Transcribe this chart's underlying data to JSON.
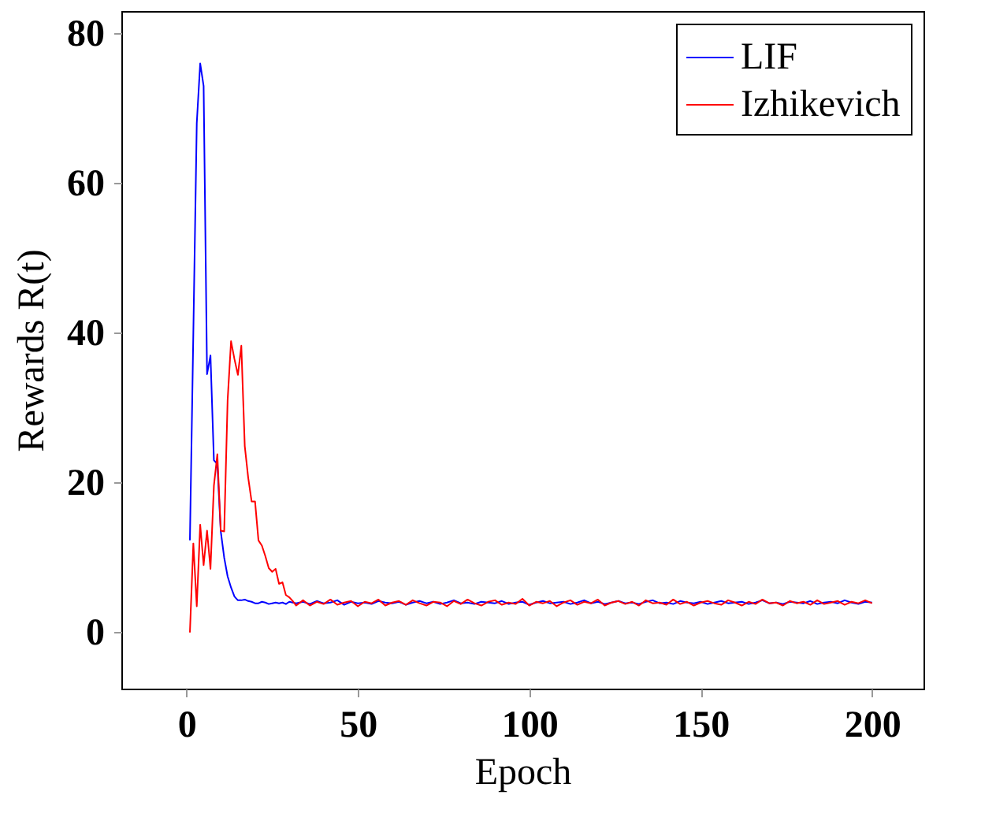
{
  "chart_data": {
    "type": "line",
    "xlabel": "Epoch",
    "ylabel": "Rewards R(t)",
    "x": [
      1,
      2,
      3,
      4,
      5,
      6,
      7,
      8,
      9,
      10,
      11,
      12,
      13,
      14,
      15,
      16,
      17,
      18,
      19,
      20,
      21,
      22,
      23,
      24,
      25,
      26,
      27,
      28,
      29,
      30,
      31,
      32,
      34,
      36,
      38,
      40,
      42,
      44,
      46,
      48,
      50,
      52,
      54,
      56,
      58,
      60,
      62,
      64,
      66,
      68,
      70,
      72,
      74,
      76,
      78,
      80,
      82,
      84,
      86,
      88,
      90,
      92,
      94,
      96,
      98,
      100,
      102,
      104,
      106,
      108,
      110,
      112,
      114,
      116,
      118,
      120,
      122,
      124,
      126,
      128,
      130,
      132,
      134,
      136,
      138,
      140,
      142,
      144,
      146,
      148,
      150,
      152,
      154,
      156,
      158,
      160,
      162,
      164,
      166,
      168,
      170,
      172,
      174,
      176,
      178,
      180,
      182,
      184,
      186,
      188,
      190,
      192,
      194,
      196,
      198,
      200
    ],
    "series": [
      {
        "name": "LIF",
        "color": "#0000ff",
        "values": [
          12.3,
          40,
          68,
          76,
          73,
          34.5,
          37,
          23,
          22.5,
          13.5,
          10,
          7.5,
          6,
          4.8,
          4.3,
          4.3,
          4.4,
          4.2,
          4.1,
          3.9,
          3.9,
          4.1,
          4,
          3.8,
          3.9,
          4,
          3.9,
          4,
          3.8,
          4.1,
          4,
          3.9,
          4.1,
          3.8,
          4.2,
          3.9,
          4.0,
          4.3,
          3.7,
          4.1,
          3.9,
          4.0,
          3.8,
          4.2,
          4.0,
          3.9,
          4.1,
          3.7,
          4.0,
          4.2,
          3.9,
          4.1,
          3.8,
          4.0,
          4.3,
          3.9,
          4.0,
          3.8,
          4.1,
          4.0,
          3.9,
          4.2,
          3.8,
          4.0,
          4.1,
          3.7,
          4.0,
          4.2,
          3.9,
          4.0,
          4.1,
          3.8,
          4.0,
          4.3,
          3.9,
          4.1,
          3.8,
          4.0,
          4.2,
          3.9,
          4.0,
          3.8,
          4.1,
          4.3,
          3.9,
          4.0,
          3.8,
          4.2,
          4.0,
          3.9,
          4.1,
          3.8,
          4.0,
          4.2,
          3.9,
          4.0,
          4.1,
          3.8,
          4.0,
          4.3,
          3.9,
          4.0,
          3.8,
          4.1,
          4.0,
          3.9,
          4.2,
          3.8,
          4.0,
          4.1,
          3.9,
          4.3,
          4.0,
          3.8,
          4.1,
          4.0
        ]
      },
      {
        "name": "Izhikevich",
        "color": "#ff0000",
        "values": [
          0,
          11.9,
          3.5,
          14.4,
          9,
          13.6,
          8.5,
          19.6,
          23.8,
          13.6,
          13.5,
          31,
          38.9,
          36.5,
          34.4,
          38.3,
          24.9,
          20.7,
          17.5,
          17.5,
          12.3,
          11.6,
          10.2,
          8.6,
          8.1,
          8.5,
          6.5,
          6.7,
          5,
          4.7,
          4.2,
          3.6,
          4.3,
          3.6,
          4.1,
          3.8,
          4.4,
          3.7,
          4.0,
          4.2,
          3.5,
          4.1,
          3.9,
          4.4,
          3.6,
          4.0,
          4.2,
          3.7,
          4.3,
          3.9,
          3.6,
          4.1,
          4.0,
          3.5,
          4.2,
          3.8,
          4.4,
          3.9,
          3.6,
          4.1,
          4.3,
          3.7,
          4.0,
          3.8,
          4.5,
          3.6,
          4.1,
          3.9,
          4.2,
          3.5,
          4.0,
          4.3,
          3.7,
          4.1,
          3.9,
          4.4,
          3.6,
          4.0,
          4.2,
          3.8,
          4.1,
          3.6,
          4.3,
          3.9,
          4.0,
          3.7,
          4.4,
          3.8,
          4.1,
          3.6,
          4.0,
          4.2,
          3.9,
          3.7,
          4.3,
          4.0,
          3.6,
          4.1,
          3.8,
          4.4,
          3.9,
          4.0,
          3.6,
          4.2,
          3.9,
          4.1,
          3.7,
          4.3,
          3.8,
          4.0,
          4.2,
          3.7,
          4.1,
          3.9,
          4.3,
          3.9
        ]
      }
    ],
    "xlim": [
      -19,
      215
    ],
    "xticks": [
      0,
      50,
      100,
      150,
      200
    ],
    "ylim": [
      -7.5,
      83
    ],
    "yticks": [
      0,
      20,
      40,
      60,
      80
    ],
    "grid": false,
    "legend": "top right",
    "marker": "none",
    "line_style": "solid"
  }
}
